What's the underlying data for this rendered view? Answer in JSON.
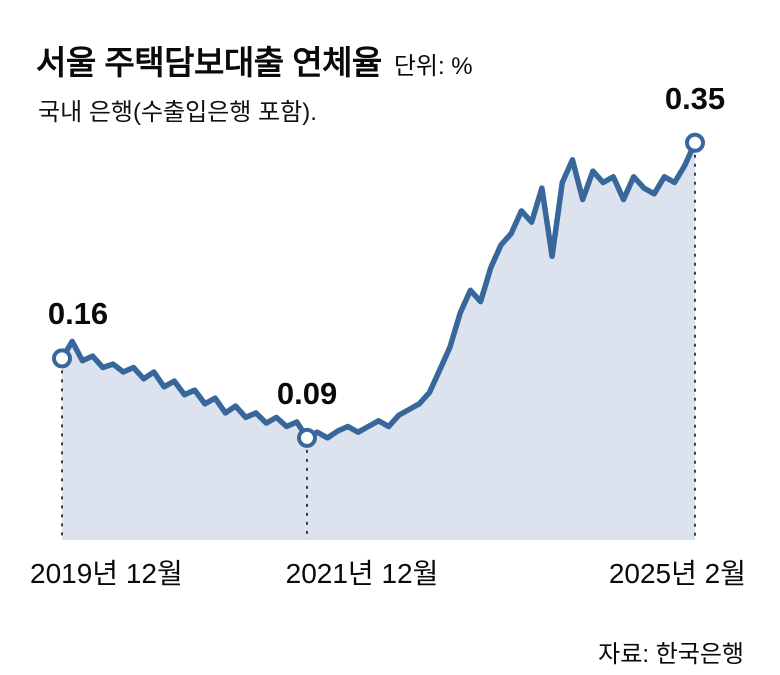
{
  "header": {
    "title": "서울 주택담보대출 연체율",
    "unit": "단위: %",
    "subtitle": "국내 은행(수출입은행 포함)."
  },
  "chart_data": {
    "type": "area",
    "title": "서울 주택담보대출 연체율",
    "subtitle": "국내 은행(수출입은행 포함).",
    "unit": "%",
    "grid": false,
    "legend": "none",
    "ylim": [
      0,
      0.38
    ],
    "line_color": "#38689b",
    "fill_color": "#dce3ee",
    "guide_color": "#222222",
    "x": [
      "2019-12",
      "2020-01",
      "2020-02",
      "2020-03",
      "2020-04",
      "2020-05",
      "2020-06",
      "2020-07",
      "2020-08",
      "2020-09",
      "2020-10",
      "2020-11",
      "2020-12",
      "2021-01",
      "2021-02",
      "2021-03",
      "2021-04",
      "2021-05",
      "2021-06",
      "2021-07",
      "2021-08",
      "2021-09",
      "2021-10",
      "2021-11",
      "2021-12",
      "2022-01",
      "2022-02",
      "2022-03",
      "2022-04",
      "2022-05",
      "2022-06",
      "2022-07",
      "2022-08",
      "2022-09",
      "2022-10",
      "2022-11",
      "2022-12",
      "2023-01",
      "2023-02",
      "2023-03",
      "2023-04",
      "2023-05",
      "2023-06",
      "2023-07",
      "2023-08",
      "2023-09",
      "2023-10",
      "2023-11",
      "2023-12",
      "2024-01",
      "2024-02",
      "2024-03",
      "2024-04",
      "2024-05",
      "2024-06",
      "2024-07",
      "2024-08",
      "2024-09",
      "2024-10",
      "2024-11",
      "2024-12",
      "2025-01",
      "2025-02"
    ],
    "values": [
      0.16,
      0.175,
      0.158,
      0.162,
      0.152,
      0.155,
      0.148,
      0.152,
      0.142,
      0.148,
      0.135,
      0.14,
      0.128,
      0.132,
      0.12,
      0.125,
      0.112,
      0.118,
      0.108,
      0.112,
      0.103,
      0.108,
      0.1,
      0.104,
      0.09,
      0.095,
      0.09,
      0.096,
      0.1,
      0.095,
      0.1,
      0.105,
      0.1,
      0.11,
      0.115,
      0.12,
      0.13,
      0.15,
      0.17,
      0.2,
      0.22,
      0.21,
      0.24,
      0.26,
      0.27,
      0.29,
      0.28,
      0.31,
      0.25,
      0.315,
      0.335,
      0.3,
      0.325,
      0.315,
      0.32,
      0.3,
      0.32,
      0.31,
      0.305,
      0.32,
      0.315,
      0.33,
      0.35
    ],
    "annotations": [
      {
        "x": "2019-12",
        "index": 0,
        "value": 0.16,
        "label": "0.16"
      },
      {
        "x": "2021-12",
        "index": 24,
        "value": 0.09,
        "label": "0.09"
      },
      {
        "x": "2025-02",
        "index": 62,
        "value": 0.35,
        "label": "0.35"
      }
    ],
    "x_tick_labels": [
      "2019년 12월",
      "2021년 12월",
      "2025년 2월"
    ]
  },
  "footer": {
    "source": "자료: 한국은행"
  }
}
